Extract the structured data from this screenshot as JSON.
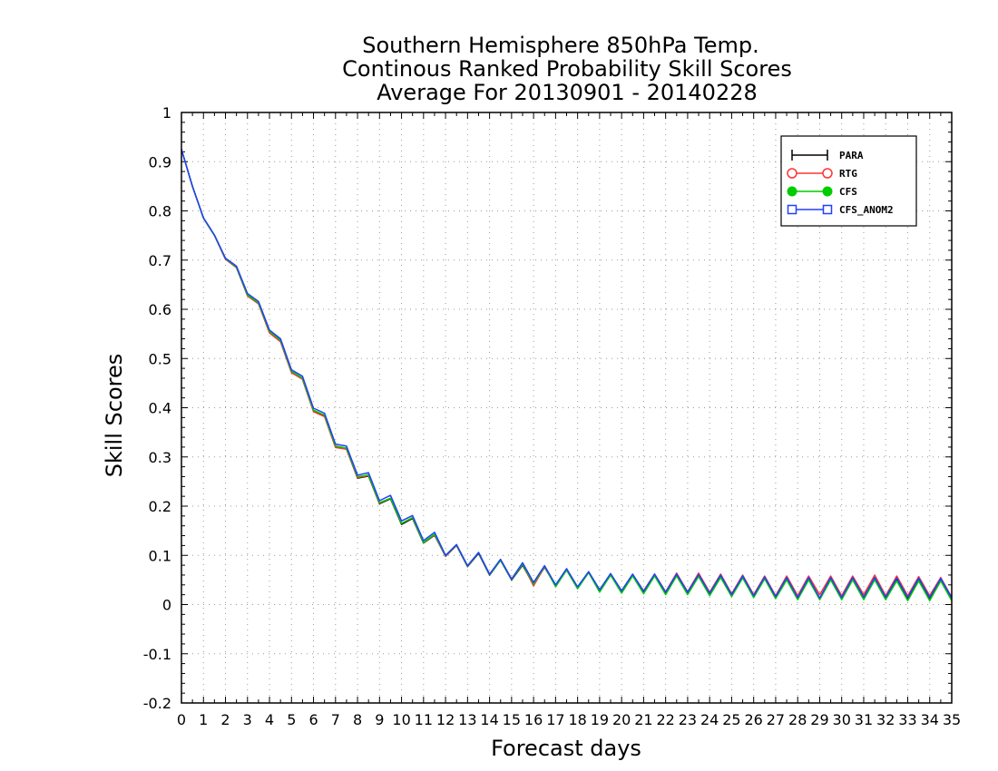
{
  "chart_data": {
    "type": "line",
    "title": [
      "Southern Hemisphere 850hPa Temp.",
      "Continous Ranked Probability Skill Scores",
      "Average For 20130901 - 20140228"
    ],
    "xlabel": "Forecast days",
    "ylabel": "Skill Scores",
    "xlim": [
      0,
      35
    ],
    "ylim": [
      -0.2,
      1
    ],
    "xticks": [
      "0",
      "1",
      "2",
      "3",
      "4",
      "5",
      "6",
      "7",
      "8",
      "9",
      "10",
      "11",
      "12",
      "13",
      "14",
      "15",
      "16",
      "17",
      "18",
      "19",
      "20",
      "21",
      "22",
      "23",
      "24",
      "25",
      "26",
      "27",
      "28",
      "29",
      "30",
      "31",
      "32",
      "33",
      "34",
      "35"
    ],
    "yticks": [
      "-0.2",
      "-0.1",
      "0",
      "0.1",
      "0.2",
      "0.3",
      "0.4",
      "0.5",
      "0.6",
      "0.7",
      "0.8",
      "0.9",
      "1"
    ],
    "grid": true,
    "legend_position": "top-right",
    "x": [
      0,
      0.5,
      1,
      1.5,
      2,
      2.5,
      3,
      3.5,
      4,
      4.5,
      5,
      5.5,
      6,
      6.5,
      7,
      7.5,
      8,
      8.5,
      9,
      9.5,
      10,
      10.5,
      11,
      11.5,
      12,
      12.5,
      13,
      13.5,
      14,
      14.5,
      15,
      15.5,
      16,
      16.5,
      17,
      17.5,
      18,
      18.5,
      19,
      19.5,
      20,
      20.5,
      21,
      21.5,
      22,
      22.5,
      23,
      23.5,
      24,
      24.5,
      25,
      25.5,
      26,
      26.5,
      27,
      27.5,
      28,
      28.5,
      29,
      29.5,
      30,
      30.5,
      31,
      31.5,
      32,
      32.5,
      33,
      33.5,
      34,
      34.5,
      35
    ],
    "series": [
      {
        "name": "PARA",
        "color": "#000000",
        "marker": "plus",
        "values": [
          0.925,
          0.85,
          0.785,
          0.75,
          0.702,
          0.685,
          0.628,
          0.612,
          0.553,
          0.535,
          0.472,
          0.458,
          0.393,
          0.383,
          0.32,
          0.316,
          0.257,
          0.261,
          0.205,
          0.215,
          0.163,
          0.175,
          0.125,
          0.141,
          0.098,
          0.12,
          0.077,
          0.104,
          0.06,
          0.09,
          0.05,
          0.08,
          0.04,
          0.076,
          0.038,
          0.07,
          0.034,
          0.065,
          0.028,
          0.06,
          0.026,
          0.059,
          0.025,
          0.059,
          0.022,
          0.06,
          0.022,
          0.059,
          0.02,
          0.057,
          0.018,
          0.056,
          0.015,
          0.054,
          0.013,
          0.053,
          0.012,
          0.053,
          0.012,
          0.053,
          0.013,
          0.054,
          0.014,
          0.054,
          0.014,
          0.052,
          0.012,
          0.053,
          0.012,
          0.052,
          0.012
        ]
      },
      {
        "name": "RTG",
        "color": "#ff3333",
        "marker": "open-circle",
        "values": [
          0.925,
          0.85,
          0.785,
          0.75,
          0.702,
          0.685,
          0.627,
          0.611,
          0.552,
          0.534,
          0.471,
          0.458,
          0.392,
          0.382,
          0.319,
          0.316,
          0.258,
          0.262,
          0.206,
          0.216,
          0.165,
          0.176,
          0.126,
          0.142,
          0.098,
          0.12,
          0.078,
          0.105,
          0.061,
          0.091,
          0.051,
          0.082,
          0.038,
          0.077,
          0.038,
          0.07,
          0.035,
          0.066,
          0.03,
          0.062,
          0.028,
          0.061,
          0.028,
          0.062,
          0.026,
          0.064,
          0.026,
          0.064,
          0.025,
          0.062,
          0.022,
          0.06,
          0.02,
          0.058,
          0.018,
          0.058,
          0.018,
          0.058,
          0.02,
          0.058,
          0.018,
          0.058,
          0.02,
          0.06,
          0.018,
          0.058,
          0.018,
          0.057,
          0.018,
          0.055,
          0.015
        ]
      },
      {
        "name": "CFS",
        "color": "#00cc00",
        "marker": "filled-circle",
        "values": [
          0.925,
          0.85,
          0.785,
          0.75,
          0.703,
          0.686,
          0.629,
          0.613,
          0.555,
          0.537,
          0.474,
          0.46,
          0.395,
          0.385,
          0.322,
          0.318,
          0.26,
          0.263,
          0.207,
          0.216,
          0.165,
          0.177,
          0.126,
          0.143,
          0.099,
          0.121,
          0.078,
          0.105,
          0.061,
          0.09,
          0.051,
          0.082,
          0.042,
          0.078,
          0.036,
          0.07,
          0.032,
          0.065,
          0.025,
          0.06,
          0.023,
          0.058,
          0.022,
          0.058,
          0.02,
          0.058,
          0.02,
          0.057,
          0.018,
          0.055,
          0.016,
          0.054,
          0.014,
          0.052,
          0.012,
          0.05,
          0.01,
          0.05,
          0.01,
          0.05,
          0.01,
          0.05,
          0.01,
          0.05,
          0.01,
          0.048,
          0.008,
          0.048,
          0.008,
          0.048,
          0.008
        ]
      },
      {
        "name": "CFS_ANOM2",
        "color": "#2040ff",
        "marker": "open-square",
        "values": [
          0.925,
          0.85,
          0.786,
          0.751,
          0.704,
          0.688,
          0.632,
          0.616,
          0.558,
          0.54,
          0.477,
          0.464,
          0.399,
          0.389,
          0.326,
          0.322,
          0.263,
          0.268,
          0.211,
          0.222,
          0.17,
          0.181,
          0.13,
          0.147,
          0.1,
          0.122,
          0.079,
          0.106,
          0.062,
          0.092,
          0.052,
          0.085,
          0.045,
          0.079,
          0.04,
          0.073,
          0.036,
          0.067,
          0.03,
          0.063,
          0.028,
          0.062,
          0.027,
          0.062,
          0.025,
          0.062,
          0.025,
          0.061,
          0.023,
          0.06,
          0.02,
          0.058,
          0.018,
          0.056,
          0.016,
          0.055,
          0.014,
          0.055,
          0.013,
          0.055,
          0.014,
          0.055,
          0.015,
          0.055,
          0.015,
          0.054,
          0.014,
          0.054,
          0.014,
          0.053,
          0.013
        ]
      }
    ]
  }
}
